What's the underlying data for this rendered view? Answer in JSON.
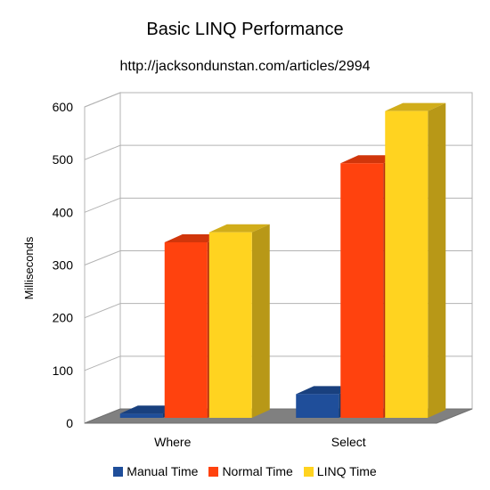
{
  "chart_data": {
    "type": "bar",
    "title": "Basic LINQ Performance",
    "subtitle": "http://jacksondunstan.com/articles/2994",
    "ylabel": "Milliseconds",
    "xlabel": "",
    "categories": [
      "Where",
      "Select"
    ],
    "series": [
      {
        "name": "Manual Time",
        "values": [
          8,
          45
        ],
        "color": "#1f4e9a"
      },
      {
        "name": "Normal Time",
        "values": [
          333,
          483
        ],
        "color": "#ff420e"
      },
      {
        "name": "LINQ Time",
        "values": [
          352,
          582
        ],
        "color": "#ffd320"
      }
    ],
    "ylim": [
      0,
      600
    ],
    "yticks": [
      0,
      100,
      200,
      300,
      400,
      500,
      600
    ],
    "grid": true,
    "legend_position": "bottom",
    "style": "3d"
  }
}
